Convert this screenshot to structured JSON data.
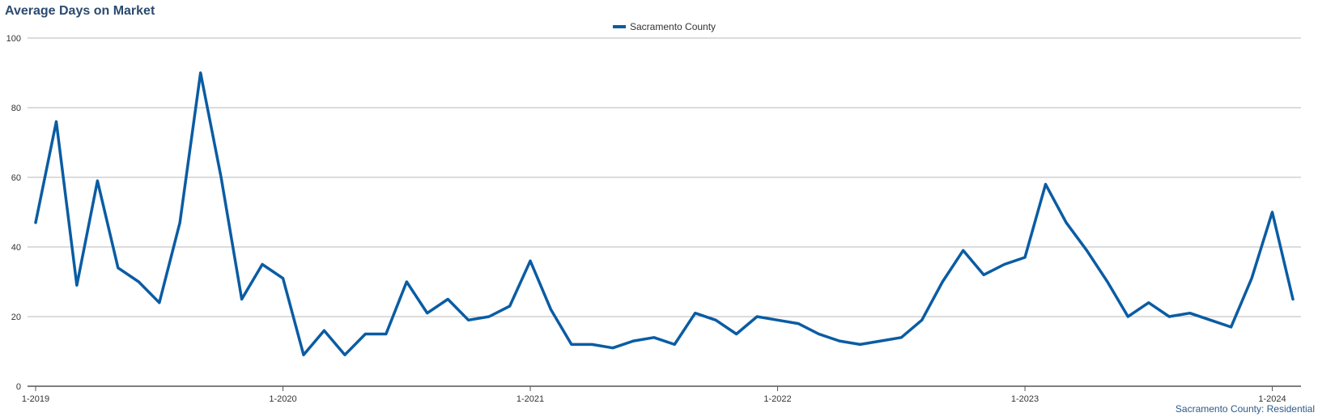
{
  "title": "Average Days on Market",
  "legend": {
    "label": "Sacramento County",
    "color": "#0a5ca3"
  },
  "credit": "Sacramento County: Residential",
  "chart_data": {
    "type": "line",
    "title": "Average Days on Market",
    "xlabel": "",
    "ylabel": "",
    "ylim": [
      0,
      100
    ],
    "yticks": [
      0,
      20,
      40,
      60,
      80,
      100
    ],
    "xticks": [
      "1-2019",
      "1-2020",
      "1-2021",
      "1-2022",
      "1-2023",
      "1-2024"
    ],
    "x": [
      "1-2019",
      "2-2019",
      "3-2019",
      "4-2019",
      "5-2019",
      "6-2019",
      "7-2019",
      "8-2019",
      "9-2019",
      "10-2019",
      "11-2019",
      "12-2019",
      "1-2020",
      "2-2020",
      "3-2020",
      "4-2020",
      "5-2020",
      "6-2020",
      "7-2020",
      "8-2020",
      "9-2020",
      "10-2020",
      "11-2020",
      "12-2020",
      "1-2021",
      "2-2021",
      "3-2021",
      "4-2021",
      "5-2021",
      "6-2021",
      "7-2021",
      "8-2021",
      "9-2021",
      "10-2021",
      "11-2021",
      "12-2021",
      "1-2022",
      "2-2022",
      "3-2022",
      "4-2022",
      "5-2022",
      "6-2022",
      "7-2022",
      "8-2022",
      "9-2022",
      "10-2022",
      "11-2022",
      "12-2022",
      "1-2023",
      "2-2023",
      "3-2023",
      "4-2023",
      "5-2023",
      "6-2023",
      "7-2023",
      "8-2023",
      "9-2023",
      "10-2023",
      "11-2023",
      "12-2023",
      "1-2024",
      "2-2024"
    ],
    "series": [
      {
        "name": "Sacramento County",
        "color": "#0a5ca3",
        "values": [
          47,
          76,
          29,
          59,
          34,
          30,
          24,
          47,
          90,
          60,
          25,
          35,
          31,
          9,
          16,
          9,
          15,
          15,
          30,
          21,
          25,
          19,
          20,
          23,
          36,
          22,
          12,
          12,
          11,
          13,
          14,
          12,
          21,
          19,
          15,
          20,
          19,
          18,
          15,
          13,
          12,
          13,
          14,
          19,
          30,
          39,
          32,
          35,
          37,
          58,
          47,
          39,
          30,
          20,
          24,
          20,
          21,
          19,
          17,
          31,
          50,
          25
        ]
      }
    ],
    "grid": true,
    "legend_position": "top-center"
  }
}
